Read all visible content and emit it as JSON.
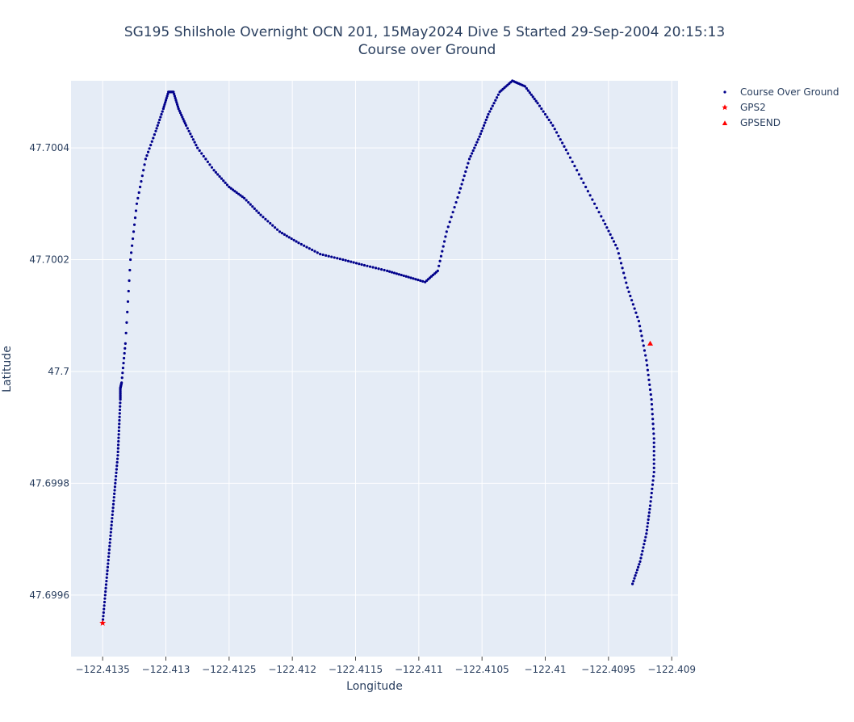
{
  "chart_data": {
    "type": "scatter",
    "title_line1": "SG195 Shilshole Overnight OCN 201, 15May2024 Dive 5 Started 29-Sep-2004 20:15:13",
    "title_line2": "Course over Ground",
    "xlabel": "Longitude",
    "ylabel": "Latitude",
    "xlim": [
      -122.41375,
      -122.40895
    ],
    "ylim": [
      47.69949,
      47.70052
    ],
    "x_ticks": [
      -122.4135,
      -122.413,
      -122.4125,
      -122.412,
      -122.4115,
      -122.411,
      -122.4105,
      -122.41,
      -122.4095,
      -122.409
    ],
    "x_tick_labels": [
      "−122.4135",
      "−122.413",
      "−122.4125",
      "−122.412",
      "−122.4115",
      "−122.411",
      "−122.4105",
      "−122.41",
      "−122.4095",
      "−122.409"
    ],
    "y_ticks": [
      47.6996,
      47.6998,
      47.7,
      47.7002,
      47.7004
    ],
    "y_tick_labels": [
      "47.6996",
      "47.6998",
      "47.7",
      "47.7002",
      "47.7004"
    ],
    "grid": true,
    "legend_position": "top-right, outside plot",
    "colors": {
      "plot_background": "#e5ecf6",
      "grid": "#ffffff",
      "course": "#00008b",
      "markers": "#ff0000",
      "text": "#2a3f5f"
    },
    "series": [
      {
        "name": "Course Over Ground",
        "marker": "dot",
        "x": [
          -122.4135,
          -122.41348,
          -122.41346,
          -122.41344,
          -122.41342,
          -122.4134,
          -122.41338,
          -122.41337,
          -122.41336,
          -122.41336,
          -122.41335,
          -122.41332,
          -122.41328,
          -122.41323,
          -122.41316,
          -122.41308,
          -122.41302,
          -122.41298,
          -122.41294,
          -122.4129,
          -122.41284,
          -122.41275,
          -122.41262,
          -122.4125,
          -122.41238,
          -122.41225,
          -122.4121,
          -122.41195,
          -122.41178,
          -122.4116,
          -122.41143,
          -122.41125,
          -122.4111,
          -122.41095,
          -122.41085,
          -122.41078,
          -122.41068,
          -122.4106,
          -122.41052,
          -122.41045,
          -122.41036,
          -122.41026,
          -122.41016,
          -122.41006,
          -122.40994,
          -122.40982,
          -122.40968,
          -122.40954,
          -122.40943,
          -122.40935,
          -122.40926,
          -122.4092,
          -122.40916,
          -122.40914,
          -122.40914,
          -122.40917,
          -122.4092,
          -122.40925,
          -122.40931
        ],
        "y": [
          47.69955,
          47.6996,
          47.69965,
          47.6997,
          47.69975,
          47.6998,
          47.69985,
          47.6999,
          47.69995,
          47.69997,
          47.69998,
          47.70005,
          47.7002,
          47.7003,
          47.70038,
          47.70043,
          47.70047,
          47.7005,
          47.7005,
          47.70047,
          47.70044,
          47.7004,
          47.70036,
          47.70033,
          47.70031,
          47.70028,
          47.70025,
          47.70023,
          47.70021,
          47.7002,
          47.70019,
          47.70018,
          47.70017,
          47.70016,
          47.70018,
          47.70025,
          47.70032,
          47.70038,
          47.70042,
          47.70046,
          47.7005,
          47.70052,
          47.70051,
          47.70048,
          47.70044,
          47.70039,
          47.70033,
          47.70027,
          47.70022,
          47.70015,
          47.70009,
          47.70002,
          47.69995,
          47.69988,
          47.69982,
          47.69976,
          47.69971,
          47.69966,
          47.69962
        ]
      },
      {
        "name": "GPS2",
        "marker": "star",
        "x": [
          -122.4135
        ],
        "y": [
          47.69955
        ]
      },
      {
        "name": "GPSEND",
        "marker": "triangle-up",
        "x": [
          -122.40917
        ],
        "y": [
          47.70005
        ]
      }
    ]
  }
}
